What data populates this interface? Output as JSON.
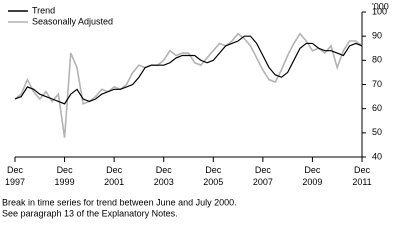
{
  "chart_data": {
    "type": "line",
    "y_label": "'000",
    "x": [
      1997.92,
      1998.17,
      1998.42,
      1998.67,
      1998.92,
      1999.17,
      1999.42,
      1999.67,
      1999.92,
      2000.17,
      2000.42,
      2000.67,
      2000.92,
      2001.17,
      2001.42,
      2001.67,
      2001.92,
      2002.17,
      2002.42,
      2002.67,
      2002.92,
      2003.17,
      2003.42,
      2003.67,
      2003.92,
      2004.17,
      2004.42,
      2004.67,
      2004.92,
      2005.17,
      2005.42,
      2005.67,
      2005.92,
      2006.17,
      2006.42,
      2006.67,
      2006.92,
      2007.17,
      2007.42,
      2007.67,
      2007.92,
      2008.17,
      2008.42,
      2008.67,
      2008.92,
      2009.17,
      2009.42,
      2009.67,
      2009.92,
      2010.17,
      2010.42,
      2010.67,
      2010.92,
      2011.17,
      2011.42,
      2011.67,
      2011.92
    ],
    "series": [
      {
        "name": "Trend",
        "color": "#000000",
        "values": [
          64,
          65,
          69,
          68,
          66,
          65,
          64,
          63,
          62,
          66,
          68,
          64,
          63,
          64,
          66,
          67,
          68,
          68,
          69,
          70,
          73,
          77,
          78,
          78,
          78,
          79,
          81,
          82,
          82,
          82,
          80,
          79,
          80,
          83,
          86,
          87,
          88,
          90,
          90,
          87,
          82,
          77,
          74,
          73,
          75,
          80,
          85,
          87,
          87,
          85,
          84,
          84,
          83,
          82,
          86,
          87,
          86
        ]
      },
      {
        "name": "Seasonally Adjusted",
        "color": "#b3b3b3",
        "values": [
          64,
          66,
          72,
          67,
          64,
          67,
          63,
          66,
          48,
          83,
          77,
          62,
          63,
          65,
          68,
          67,
          69,
          68,
          70,
          75,
          78,
          77,
          78,
          78,
          80,
          84,
          82,
          83,
          83,
          79,
          78,
          81,
          84,
          87,
          86,
          88,
          91,
          89,
          86,
          81,
          76,
          72,
          71,
          76,
          82,
          87,
          91,
          88,
          84,
          85,
          83,
          86,
          77,
          84,
          88,
          88,
          86
        ]
      }
    ],
    "xlim": [
      1997.92,
      2011.92
    ],
    "xticks": [
      {
        "value": 1997.92,
        "label": "Dec 1997"
      },
      {
        "value": 1999.92,
        "label": "Dec 1999"
      },
      {
        "value": 2001.92,
        "label": "Dec 2001"
      },
      {
        "value": 2003.92,
        "label": "Dec 2003"
      },
      {
        "value": 2005.92,
        "label": "Dec 2005"
      },
      {
        "value": 2007.92,
        "label": "Dec 2007"
      },
      {
        "value": 2009.92,
        "label": "Dec 2009"
      },
      {
        "value": 2011.92,
        "label": "Dec 2011"
      }
    ],
    "ylim": [
      40,
      100
    ],
    "yticks": [
      40,
      50,
      60,
      70,
      80,
      90,
      100
    ],
    "legend": "top-left",
    "notes": [
      "Break in time series for trend between June and July 2000.",
      "See paragraph 13 of the Explanatory Notes."
    ]
  }
}
